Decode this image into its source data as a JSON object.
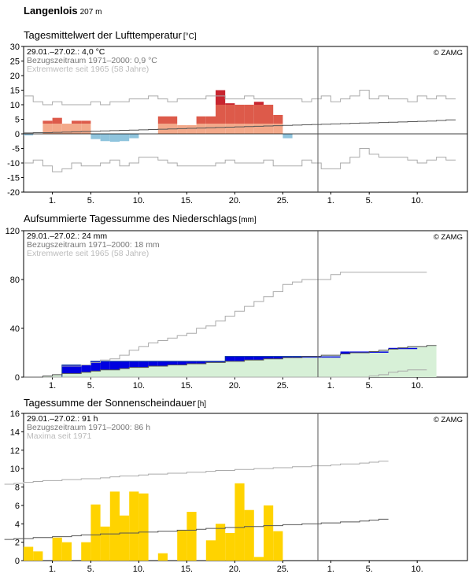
{
  "station": {
    "name": "Langenlois",
    "elevation": "207 m"
  },
  "copyright": "© ZAMG",
  "colors": {
    "temp_dark": "#c8252f",
    "temp_mid": "#dd5a4a",
    "temp_light": "#f3a98a",
    "temp_cold": "#8fc4dd",
    "precip_blue": "#0000e0",
    "precip_green": "#d7f0d7",
    "sun_yellow": "#ffd300",
    "grey_line": "#aaaaaa",
    "dark_line": "#555555"
  },
  "chart_data": [
    {
      "type": "bar",
      "title": "Tagesmittelwert der Lufttemperatur",
      "unit": "[°C]",
      "info": [
        "29.01.–27.02.: 4,0 °C",
        "Bezugszeitraum 1971–2000: 0,9 °C",
        "Extremwerte seit 1965 (58 Jahre)"
      ],
      "ylim": [
        -20,
        30
      ],
      "yticks": [
        "30",
        "25",
        "20",
        "15",
        "10",
        "5",
        "0",
        "-5",
        "-10",
        "-15",
        "-20"
      ],
      "xticks": [
        "1.",
        "5.",
        "10.",
        "15.",
        "20.",
        "25.",
        "1.",
        "5.",
        "10."
      ],
      "values": [
        -0.5,
        0,
        4.5,
        5.5,
        3.5,
        4.5,
        4.5,
        -1.8,
        -2.5,
        -2.7,
        -2.5,
        -1.5,
        0,
        0,
        6,
        6,
        3,
        3,
        6,
        6,
        15,
        10.5,
        10,
        10,
        11,
        10,
        6.5,
        -1.5
      ],
      "mean_line": [
        0.3,
        0.4,
        0.4,
        0.5,
        0.6,
        0.7,
        0.8,
        0.9,
        1,
        1.1,
        1.2,
        1.3,
        1.4,
        1.5,
        1.6,
        1.7,
        1.8,
        1.9,
        2,
        2.1,
        2.2,
        2.3,
        2.4,
        2.5,
        2.6,
        2.7,
        2.8,
        2.9,
        3,
        3.1,
        3.2,
        3.3,
        3.4,
        3.5,
        3.6,
        3.7,
        3.8,
        3.9,
        4,
        4.1,
        4.2,
        4.3,
        4.4,
        4.6,
        4.8
      ],
      "max_line": [
        13,
        11,
        10,
        11,
        10,
        10,
        10,
        11,
        10,
        11,
        11,
        12,
        12,
        13,
        12,
        11,
        12,
        12,
        12,
        13,
        13,
        12,
        12,
        13,
        12,
        12,
        12,
        12,
        12,
        11,
        12,
        13,
        11,
        12,
        13,
        15,
        12,
        13,
        12,
        12,
        11,
        13,
        12,
        13,
        12
      ],
      "min_line": [
        -10,
        -9,
        -11,
        -13,
        -12,
        -10,
        -11,
        -11,
        -10,
        -9,
        -11,
        -10,
        -8,
        -8,
        -9,
        -10,
        -11,
        -11,
        -11,
        -11,
        -10,
        -9,
        -10,
        -10,
        -10,
        -9,
        -11,
        -11,
        -11,
        -9,
        -10,
        -12,
        -12,
        -10,
        -8,
        -5,
        -7,
        -8,
        -8,
        -8,
        -9,
        -10,
        -9,
        -8,
        -9
      ]
    },
    {
      "type": "line",
      "title": "Aufsummierte Tagessumme des Niederschlags",
      "unit": "[mm]",
      "info": [
        "29.01.–27.02.: 24 mm",
        "Bezugszeitraum 1971–2000: 18 mm",
        "Extremwerte seit 1965 (58 Jahre)"
      ],
      "ylim": [
        0,
        120
      ],
      "yticks": [
        "120",
        "80",
        "40",
        "0"
      ],
      "xticks": [
        "1.",
        "5.",
        "10.",
        "15.",
        "20.",
        "25.",
        "1.",
        "5.",
        "10."
      ],
      "cumulative": [
        0,
        0,
        0,
        0,
        10,
        10,
        10,
        13,
        13,
        13,
        13,
        13,
        13,
        13,
        13,
        13,
        13,
        13,
        13,
        13,
        13,
        17,
        17,
        17,
        17,
        17,
        17,
        17,
        17,
        17,
        17,
        17,
        17,
        21,
        21,
        21,
        21,
        21,
        24,
        24,
        24
      ],
      "reference_cumulative": [
        0,
        0,
        1,
        2,
        3,
        3,
        4,
        5,
        6,
        6,
        7,
        8,
        8,
        9,
        9,
        10,
        10,
        11,
        11,
        12,
        12,
        13,
        13,
        14,
        14,
        15,
        15,
        16,
        16,
        17,
        17,
        18,
        18,
        19,
        20,
        20,
        21,
        22,
        23,
        24,
        25,
        25,
        26
      ],
      "max_cumulative": [
        9,
        9,
        10,
        12,
        14,
        15,
        18,
        22,
        25,
        28,
        30,
        32,
        34,
        36,
        40,
        42,
        46,
        50,
        54,
        58,
        62,
        66,
        70,
        76,
        78,
        80,
        80,
        80,
        84,
        86,
        86,
        86,
        86,
        86,
        86,
        86,
        86,
        86
      ],
      "min_cumulative": [
        0,
        0,
        0,
        0,
        0,
        0,
        0,
        0,
        0,
        0,
        0,
        0,
        0,
        0,
        0,
        0,
        0,
        0,
        0,
        0,
        0,
        0,
        0,
        0,
        0,
        0,
        0,
        0,
        0,
        0,
        0,
        0,
        0,
        0,
        0,
        0,
        1,
        2,
        4,
        5,
        6,
        6
      ]
    },
    {
      "type": "bar",
      "title": "Tagessumme der Sonnenscheindauer",
      "unit": "[h]",
      "info": [
        "29.01.–27.02.: 91 h",
        "Bezugszeitraum 1971–2000: 86 h",
        "Maxima seit 1971"
      ],
      "ylim": [
        0,
        16
      ],
      "yticks": [
        "16",
        "14",
        "12",
        "10",
        "8",
        "6",
        "4",
        "2",
        "0"
      ],
      "xticks": [
        "1.",
        "5.",
        "10.",
        "15.",
        "20.",
        "25.",
        "1.",
        "5.",
        "10."
      ],
      "values": [
        1.5,
        1,
        0,
        2.5,
        2,
        0,
        2,
        6.1,
        3.7,
        7.5,
        4.9,
        7.5,
        7.3,
        0,
        0.8,
        0,
        3.3,
        5.3,
        0,
        2.2,
        4,
        3,
        8.4,
        5.5,
        0.4,
        6,
        3.2
      ],
      "mean_line": [
        2.3,
        2.4,
        2.4,
        2.5,
        2.5,
        2.6,
        2.6,
        2.7,
        2.8,
        2.8,
        2.9,
        2.9,
        3,
        3,
        3.1,
        3.1,
        3.2,
        3.2,
        3.3,
        3.3,
        3.4,
        3.5,
        3.5,
        3.6,
        3.6,
        3.7,
        3.7,
        3.8,
        3.8,
        3.9,
        3.9,
        4,
        4,
        4.1,
        4.1,
        4.2,
        4.2,
        4.3,
        4.4,
        4.5
      ],
      "max_line": [
        8.3,
        8.4,
        8.5,
        8.6,
        8.7,
        8.7,
        8.8,
        8.8,
        8.9,
        8.9,
        9,
        9.1,
        9.2,
        9.2,
        9.3,
        9.4,
        9.4,
        9.5,
        9.5,
        9.6,
        9.6,
        9.7,
        9.8,
        9.8,
        9.9,
        9.9,
        10,
        10,
        10.1,
        10.1,
        10.2,
        10.2,
        10.3,
        10.3,
        10.4,
        10.5,
        10.5,
        10.6,
        10.7,
        10.8
      ]
    }
  ]
}
